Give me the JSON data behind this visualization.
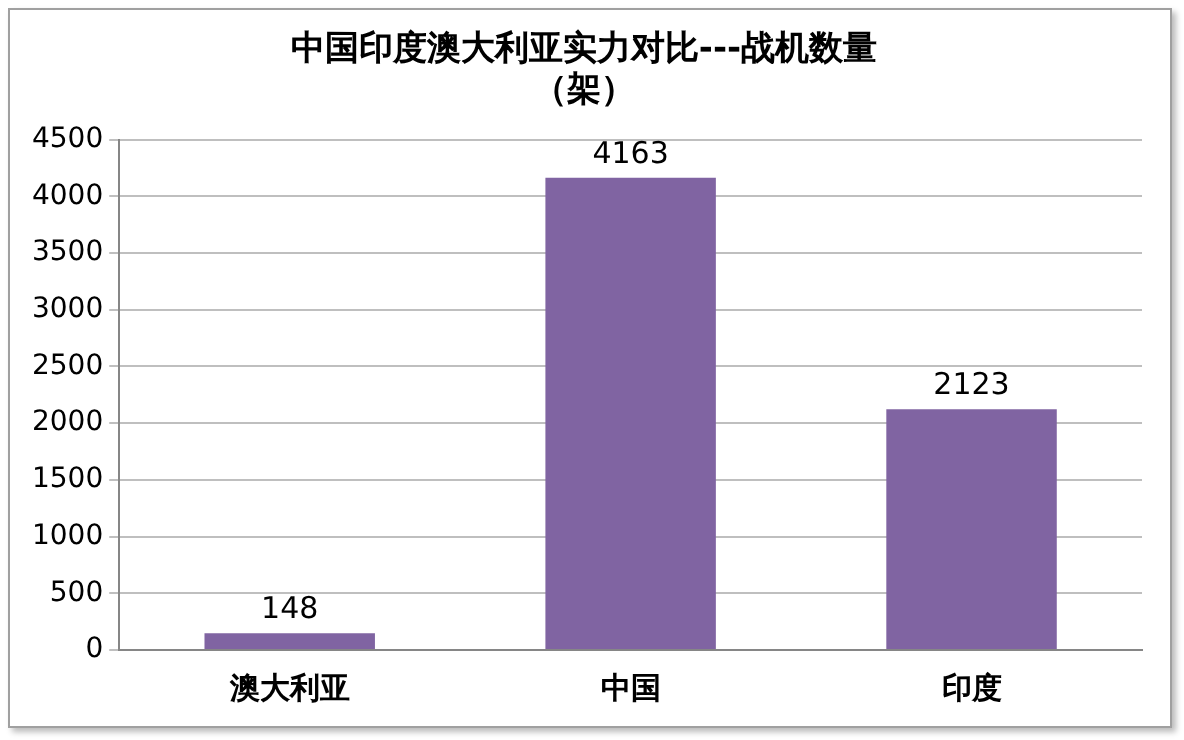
{
  "chart_data": {
    "type": "bar",
    "title": "中国印度澳大利亚实力对比---战机数量（架）",
    "categories": [
      "澳大利亚",
      "中国",
      "印度"
    ],
    "values": [
      148,
      4163,
      2123
    ],
    "color": "#8064a2",
    "ylim": [
      0,
      4500
    ],
    "yticks": [
      0,
      500,
      1000,
      1500,
      2000,
      2500,
      3000,
      3500,
      4000,
      4500
    ],
    "grid": "y",
    "data_labels": true
  }
}
